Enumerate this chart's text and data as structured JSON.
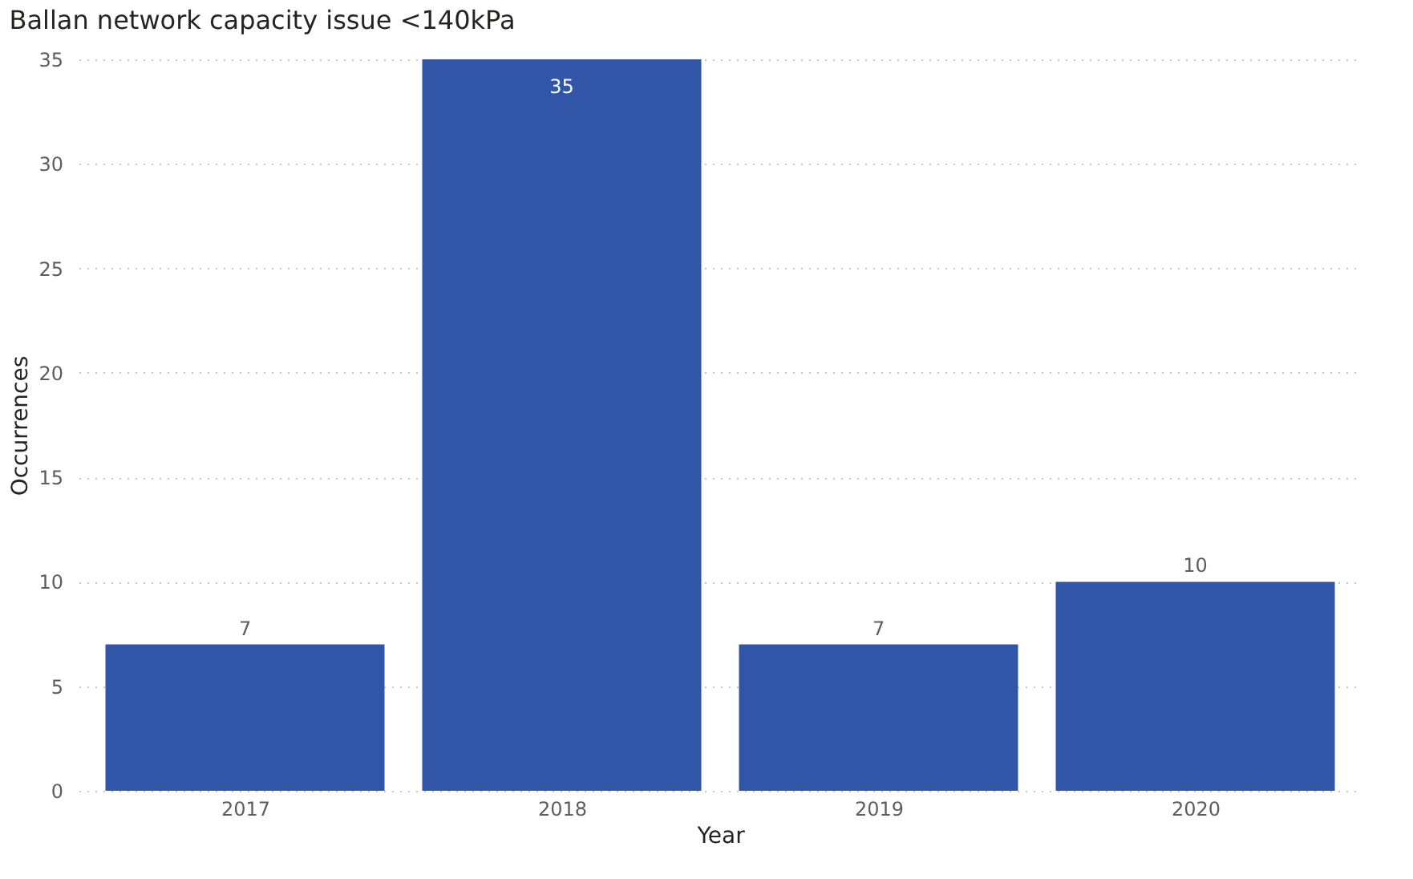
{
  "chart_data": {
    "type": "bar",
    "title": "Ballan network capacity issue <140kPa",
    "xlabel": "Year",
    "ylabel": "Occurrences",
    "categories": [
      "2017",
      "2018",
      "2019",
      "2020"
    ],
    "values": [
      7,
      35,
      7,
      10
    ],
    "color": "#3156a8",
    "ylim": [
      0,
      35
    ],
    "yticks": [
      0,
      5,
      10,
      15,
      20,
      25,
      30,
      35
    ],
    "grid": "y",
    "data_labels": true
  }
}
